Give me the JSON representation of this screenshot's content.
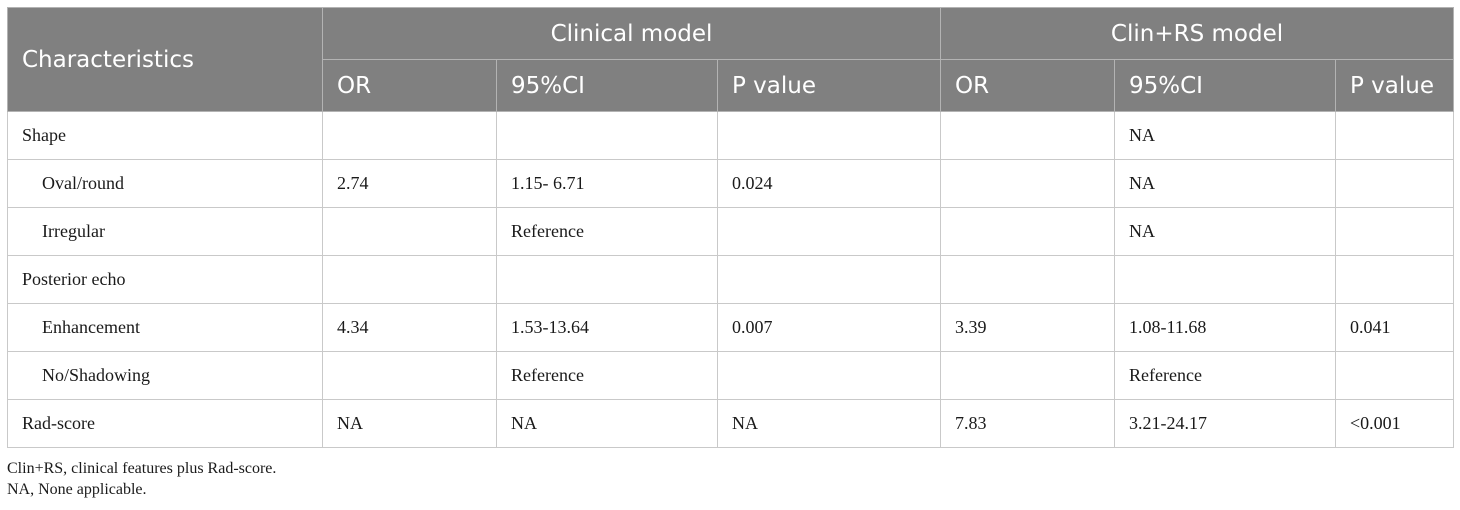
{
  "header": {
    "characteristics": "Characteristics",
    "group1": "Clinical model",
    "group2": "Clin+RS model",
    "sub": [
      "OR",
      "95%CI",
      "P value",
      "OR",
      "95%CI",
      "P value"
    ]
  },
  "rows": [
    {
      "label": "Shape",
      "cells": [
        "",
        "",
        "",
        "",
        "NA",
        ""
      ]
    },
    {
      "label": "Oval/round",
      "cells": [
        "2.74",
        "1.15- 6.71",
        "0.024",
        "",
        "NA",
        ""
      ]
    },
    {
      "label": "Irregular",
      "cells": [
        "",
        "Reference",
        "",
        "",
        "NA",
        ""
      ]
    },
    {
      "label": "Posterior echo",
      "cells": [
        "",
        "",
        "",
        "",
        "",
        ""
      ]
    },
    {
      "label": "Enhancement",
      "cells": [
        "4.34",
        "1.53-13.64",
        "0.007",
        "3.39",
        "1.08-11.68",
        "0.041"
      ]
    },
    {
      "label": "No/Shadowing",
      "cells": [
        "",
        "Reference",
        "",
        "",
        "Reference",
        ""
      ]
    },
    {
      "label": "Rad-score",
      "cells": [
        "NA",
        "NA",
        "NA",
        "7.83",
        "3.21-24.17",
        "<0.001"
      ]
    }
  ],
  "footnotes": [
    "Clin+RS, clinical features plus Rad-score.",
    "NA, None applicable."
  ]
}
